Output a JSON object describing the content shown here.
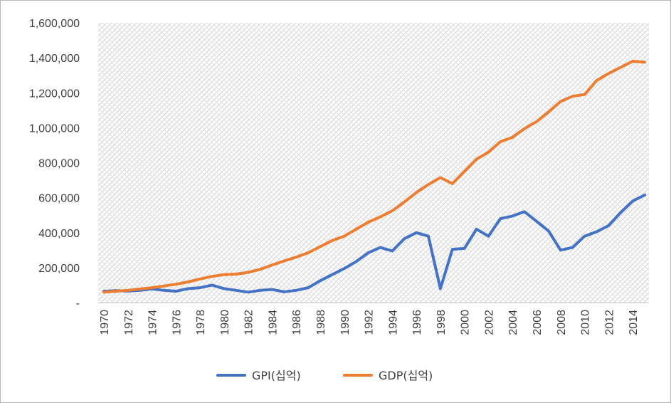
{
  "chart_data": {
    "type": "line",
    "title": "",
    "xlabel": "",
    "ylabel": "",
    "x": [
      1970,
      1971,
      1972,
      1973,
      1974,
      1975,
      1976,
      1977,
      1978,
      1979,
      1980,
      1981,
      1982,
      1983,
      1984,
      1985,
      1986,
      1987,
      1988,
      1989,
      1990,
      1991,
      1992,
      1993,
      1994,
      1995,
      1996,
      1997,
      1998,
      1999,
      2000,
      2001,
      2002,
      2003,
      2004,
      2005,
      2006,
      2007,
      2008,
      2009,
      2010,
      2011,
      2012,
      2013,
      2014,
      2015
    ],
    "x_tick_labels": [
      "1970",
      "1972",
      "1974",
      "1976",
      "1978",
      "1980",
      "1982",
      "1984",
      "1986",
      "1988",
      "1990",
      "1992",
      "1994",
      "1996",
      "1998",
      "2000",
      "2002",
      "2004",
      "2006",
      "2008",
      "2010",
      "2012",
      "2014"
    ],
    "ylim": [
      0,
      1600000
    ],
    "y_tick_labels": [
      "-",
      "200,000",
      "400,000",
      "600,000",
      "800,000",
      "1,000,000",
      "1,200,000",
      "1,400,000",
      "1,600,000"
    ],
    "grid": "hatched plot area",
    "legend_position": "bottom",
    "series": [
      {
        "name": "GPI(십억)",
        "color": "#4472c4",
        "values": [
          65000,
          68000,
          66000,
          70000,
          78000,
          70000,
          65000,
          80000,
          85000,
          100000,
          80000,
          70000,
          60000,
          70000,
          75000,
          62000,
          70000,
          85000,
          125000,
          160000,
          195000,
          235000,
          285000,
          315000,
          295000,
          365000,
          400000,
          380000,
          80000,
          305000,
          310000,
          420000,
          380000,
          480000,
          495000,
          520000,
          465000,
          410000,
          300000,
          315000,
          380000,
          405000,
          440000,
          515000,
          580000,
          615000
        ]
      },
      {
        "name": "GDP(십억)",
        "color": "#ed7d31",
        "values": [
          60000,
          65000,
          70000,
          78000,
          85000,
          95000,
          105000,
          118000,
          135000,
          150000,
          160000,
          163000,
          173000,
          190000,
          215000,
          238000,
          260000,
          285000,
          320000,
          355000,
          380000,
          420000,
          460000,
          490000,
          525000,
          575000,
          630000,
          675000,
          715000,
          680000,
          750000,
          820000,
          860000,
          920000,
          945000,
          995000,
          1035000,
          1090000,
          1150000,
          1180000,
          1190000,
          1270000,
          1310000,
          1345000,
          1380000,
          1375000
        ]
      }
    ]
  }
}
